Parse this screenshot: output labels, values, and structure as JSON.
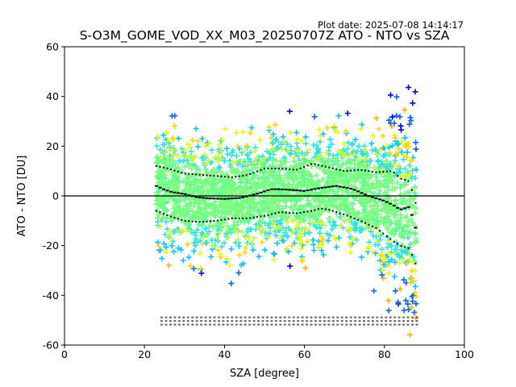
{
  "plot_date": "Plot date: 2025-07-08 14:14:17",
  "chart_data": {
    "type": "scatter",
    "title": "S-O3M_GOME_VOD_XX_M03_20250707Z ATO - NTO vs SZA",
    "xlabel": "SZA [degree]",
    "ylabel": "ATO - NTO [DU]",
    "xlim": [
      0,
      100
    ],
    "ylim": [
      -60,
      60
    ],
    "xticks": [
      0,
      20,
      40,
      60,
      80,
      100
    ],
    "yticks": [
      -60,
      -40,
      -20,
      0,
      20,
      40,
      60
    ],
    "grid": false,
    "legend": "none",
    "marker": "+",
    "reference_line_y": 0,
    "point_colors": [
      "#0000ff",
      "#0a64ff",
      "#00c8ff",
      "#00f0f0",
      "#40e0d0",
      "#5aff90",
      "#7cfc7c",
      "#c8ff32",
      "#e6ff00",
      "#ffd700",
      "#ffb000"
    ],
    "sza_range": [
      23,
      88
    ],
    "mean_curve": {
      "x": [
        23,
        25,
        27,
        30,
        33,
        36,
        40,
        44,
        48,
        52,
        56,
        60,
        64,
        68,
        72,
        76,
        80,
        82,
        84,
        86,
        87,
        88
      ],
      "y": [
        4,
        2.5,
        1.5,
        0.8,
        -0.5,
        -1,
        -1.2,
        -0.8,
        0.8,
        2.8,
        2.5,
        2,
        3.2,
        4,
        2.8,
        0,
        -2,
        -3.5,
        -5.5,
        -4.5,
        -8,
        -14
      ]
    },
    "upper_curve": {
      "x": [
        23,
        26,
        30,
        34,
        38,
        42,
        46,
        50,
        54,
        58,
        62,
        66,
        70,
        74,
        78,
        82,
        84,
        86,
        87,
        88
      ],
      "y": [
        12,
        11,
        9,
        8.5,
        8,
        7.5,
        8.5,
        11,
        11,
        10.5,
        13,
        11.5,
        10,
        10.5,
        9.5,
        10,
        7,
        6,
        2,
        -4
      ]
    },
    "lower_curve": {
      "x": [
        23,
        26,
        30,
        34,
        38,
        42,
        46,
        50,
        54,
        58,
        62,
        64,
        66,
        70,
        74,
        78,
        82,
        84,
        86,
        87,
        88
      ],
      "y": [
        -6,
        -8,
        -10,
        -10.5,
        -10,
        -9,
        -9,
        -8,
        -6.5,
        -7,
        -6,
        -5,
        -5.5,
        -7.5,
        -10,
        -13,
        -18,
        -20,
        -21,
        -24,
        -28
      ]
    },
    "bin_count_rows": 3
  }
}
